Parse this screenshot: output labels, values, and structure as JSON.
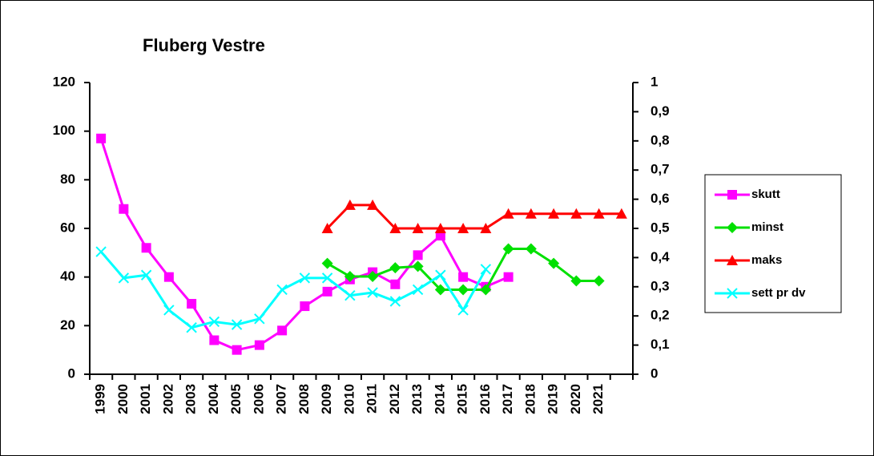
{
  "chart_data": {
    "type": "line",
    "title": "Fluberg Vestre",
    "categories": [
      "1999",
      "2000",
      "2001",
      "2002",
      "2003",
      "2004",
      "2005",
      "2006",
      "2007",
      "2008",
      "2009",
      "2010",
      "2011",
      "2012",
      "2013",
      "2014",
      "2015",
      "2016",
      "2017",
      "2018",
      "2019",
      "2020",
      "2021",
      null
    ],
    "ylim": [
      0,
      120
    ],
    "yticks": [
      0,
      20,
      40,
      60,
      80,
      100,
      120
    ],
    "y2lim": [
      0,
      1
    ],
    "y2ticks": [
      0,
      {
        "value": 0.1,
        "label": "0,1"
      },
      {
        "value": 0.2,
        "label": "0,2"
      },
      {
        "value": 0.3,
        "label": "0,3"
      },
      {
        "value": 0.4,
        "label": "0,4"
      },
      {
        "value": 0.5,
        "label": "0,5"
      },
      {
        "value": 0.6,
        "label": "0,6"
      },
      {
        "value": 0.7,
        "label": "0,7"
      },
      {
        "value": 0.8,
        "label": "0,8"
      },
      {
        "value": 0.9,
        "label": "0,9"
      },
      1
    ],
    "legend": "right",
    "series": [
      {
        "name": "skutt",
        "color": "#ff00ff",
        "marker": "square",
        "values": [
          97,
          68,
          52,
          40,
          29,
          14,
          10,
          12,
          18,
          28,
          34,
          39,
          42,
          37,
          49,
          57,
          40,
          36,
          40,
          null,
          null,
          null,
          null,
          null
        ]
      },
      {
        "name": "minst",
        "color": "#00e000",
        "marker": "diamond",
        "axis": "y2",
        "values": [
          null,
          null,
          null,
          null,
          null,
          null,
          null,
          null,
          null,
          null,
          0.38,
          0.335,
          0.335,
          0.365,
          0.37,
          0.29,
          0.29,
          0.29,
          0.43,
          0.43,
          0.38,
          0.32,
          0.32,
          null
        ]
      },
      {
        "name": "maks",
        "color": "#ff0000",
        "marker": "triangle",
        "axis": "y2",
        "values": [
          null,
          null,
          null,
          null,
          null,
          null,
          null,
          null,
          null,
          null,
          0.5,
          0.58,
          0.58,
          0.5,
          0.5,
          0.5,
          0.5,
          0.5,
          0.55,
          0.55,
          0.55,
          0.55,
          0.55,
          0.55
        ]
      },
      {
        "name": "sett pr dv",
        "color": "#00ffff",
        "marker": "x",
        "axis": "y2",
        "values": [
          0.42,
          0.33,
          0.34,
          0.22,
          0.16,
          0.18,
          0.17,
          0.19,
          0.29,
          0.33,
          0.33,
          0.27,
          0.28,
          0.25,
          0.29,
          0.34,
          0.22,
          0.36,
          null,
          null,
          null,
          null,
          null,
          null
        ]
      }
    ]
  }
}
